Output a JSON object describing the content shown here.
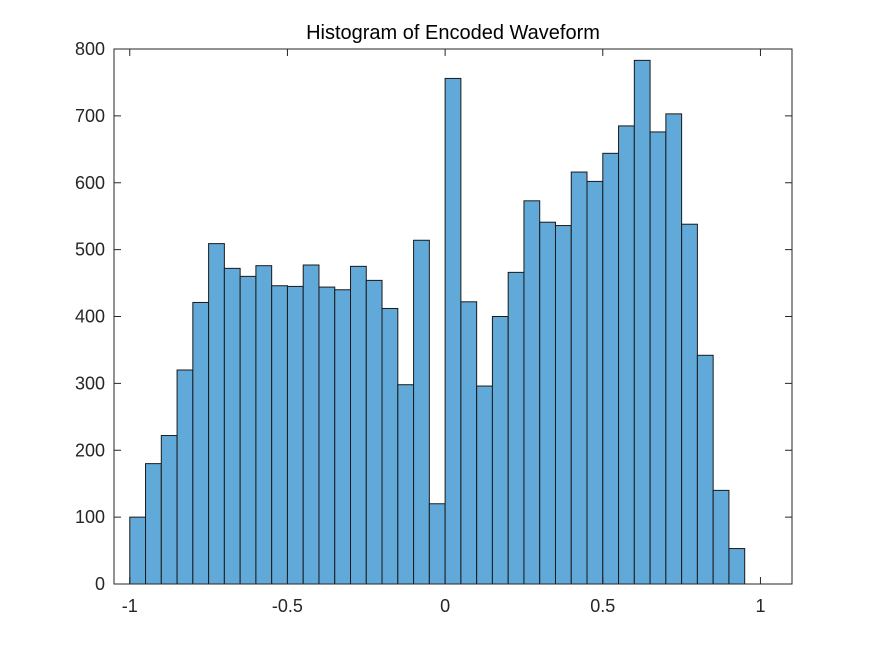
{
  "chart_data": {
    "type": "bar",
    "title": "Histogram of Encoded Waveform",
    "xlabel": "",
    "ylabel": "",
    "xlim": [
      -1.05,
      1.1
    ],
    "ylim": [
      0,
      800
    ],
    "grid": false,
    "bar_color": "#61A9D8",
    "edge_color": "#1A1A1A",
    "axis_color": "#262626",
    "bin_width": 0.05,
    "bin_edges_start": -1,
    "values": [
      100,
      180,
      222,
      320,
      421,
      509,
      472,
      460,
      476,
      446,
      445,
      477,
      444,
      440,
      475,
      454,
      412,
      298,
      514,
      120,
      756,
      422,
      296,
      400,
      466,
      573,
      541,
      536,
      616,
      602,
      644,
      685,
      783,
      676,
      703,
      538,
      342,
      140,
      53
    ],
    "x_ticks": [
      -1,
      -0.5,
      0,
      0.5,
      1
    ],
    "x_tick_labels": [
      "-1",
      "-0.5",
      "0",
      "0.5",
      "1"
    ],
    "y_ticks": [
      0,
      100,
      200,
      300,
      400,
      500,
      600,
      700,
      800
    ],
    "y_tick_labels": [
      "0",
      "100",
      "200",
      "300",
      "400",
      "500",
      "600",
      "700",
      "800"
    ]
  }
}
